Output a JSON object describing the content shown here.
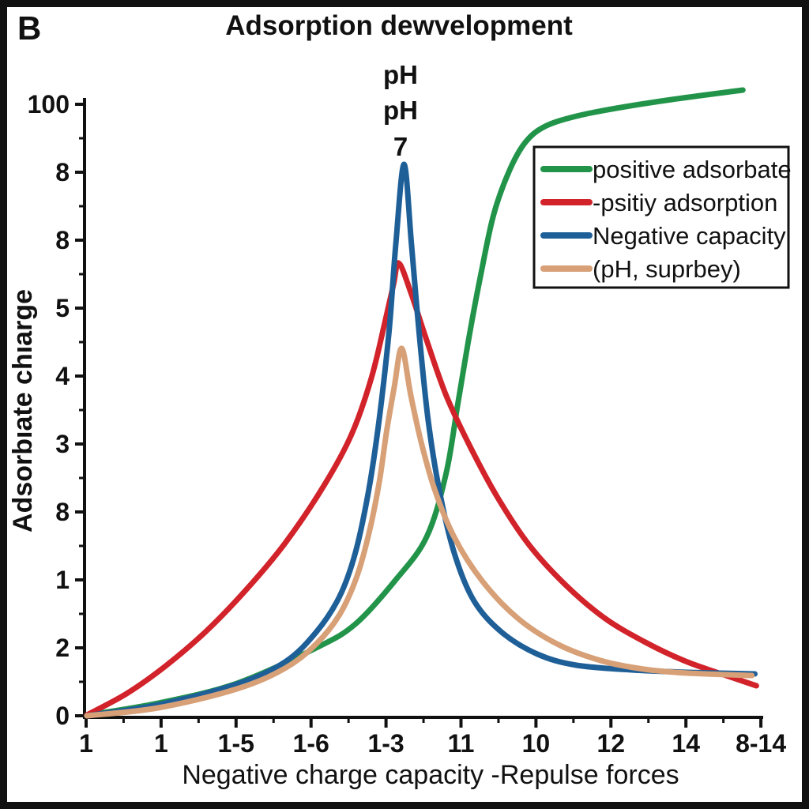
{
  "panel_label": "B",
  "title": "Adsorption dewvelopment",
  "annotation": {
    "lines": [
      "pH",
      "pH",
      "7"
    ]
  },
  "axes": {
    "x_label": "Negative charge capacity -Repulse forces",
    "y_label": "Adsorbıate chıarge",
    "x_tick_labels": [
      "1",
      "1",
      "1-5",
      "1-6",
      "1-3",
      "11",
      "10",
      "12",
      "14",
      "8-14"
    ],
    "y_tick_labels": [
      "100",
      "8",
      "8",
      "5",
      "4",
      "3",
      "8",
      "1",
      "2",
      "0"
    ]
  },
  "legend": {
    "items": [
      {
        "label": "positive adsorbate",
        "color": "#22944a"
      },
      {
        "label": "-psitiy adsorption",
        "color": "#d2232b"
      },
      {
        "label": "Negative capacity",
        "color": "#1e5f98"
      },
      {
        "label": "(pH,  suprbey)",
        "color": "#d7a077"
      }
    ]
  },
  "colors": {
    "frame": "#111111",
    "axis": "#111111",
    "background": "#ffffff"
  },
  "chart_data": {
    "type": "line",
    "title": "Adsorption dewvelopment",
    "xlabel": "Negative charge capacity -Repulse forces",
    "ylabel": "Adsorbıate chıarge",
    "x_tick_labels": [
      "1",
      "1",
      "1-5",
      "1-6",
      "1-3",
      "11",
      "10",
      "12",
      "14",
      "8-14"
    ],
    "y_tick_labels": [
      "100",
      "8",
      "8",
      "5",
      "4",
      "3",
      "8",
      "1",
      "2",
      "0"
    ],
    "x_range": [
      0,
      9.0
    ],
    "y_range": [
      0,
      103
    ],
    "grid": false,
    "legend_position": "upper right",
    "series": [
      {
        "name": "positive adsorbate",
        "color": "#22944a",
        "shape": "sigmoid",
        "points": [
          [
            0.01,
            0.1
          ],
          [
            0.96,
            2.07
          ],
          [
            2.01,
            5.3
          ],
          [
            3.07,
            11.11
          ],
          [
            3.59,
            14.99
          ],
          [
            4.12,
            22.09
          ],
          [
            4.54,
            29.2
          ],
          [
            4.8,
            39.53
          ],
          [
            4.96,
            51.16
          ],
          [
            5.12,
            62.79
          ],
          [
            5.28,
            73.13
          ],
          [
            5.44,
            82.17
          ],
          [
            5.65,
            89.28
          ],
          [
            5.86,
            93.8
          ],
          [
            6.12,
            96.38
          ],
          [
            6.54,
            98.06
          ],
          [
            7.07,
            99.35
          ],
          [
            7.81,
            100.78
          ],
          [
            8.76,
            102.33
          ]
        ]
      },
      {
        "name": "-psitiy adsorption",
        "color": "#d2232b",
        "shape": "broad peak at pH 7",
        "points": [
          [
            0.01,
            0.13
          ],
          [
            0.54,
            3.62
          ],
          [
            1.06,
            8.14
          ],
          [
            1.59,
            13.7
          ],
          [
            2.12,
            20.41
          ],
          [
            2.65,
            28.17
          ],
          [
            3.17,
            37.6
          ],
          [
            3.54,
            46.0
          ],
          [
            3.8,
            55.04
          ],
          [
            3.98,
            64.08
          ],
          [
            4.1,
            70.54
          ],
          [
            4.17,
            74.03
          ],
          [
            4.33,
            69.25
          ],
          [
            4.54,
            61.5
          ],
          [
            4.8,
            52.45
          ],
          [
            5.12,
            44.06
          ],
          [
            5.49,
            35.66
          ],
          [
            5.91,
            27.91
          ],
          [
            6.39,
            21.45
          ],
          [
            6.91,
            16.02
          ],
          [
            7.44,
            12.14
          ],
          [
            7.97,
            9.04
          ],
          [
            8.44,
            6.98
          ],
          [
            8.94,
            4.91
          ]
        ]
      },
      {
        "name": "Negative capacity",
        "color": "#1e5f98",
        "shape": "tall narrow peak at pH 7",
        "points": [
          [
            0.01,
            0.0
          ],
          [
            0.96,
            1.81
          ],
          [
            2.01,
            5.17
          ],
          [
            2.65,
            8.79
          ],
          [
            3.07,
            13.7
          ],
          [
            3.38,
            19.51
          ],
          [
            3.59,
            26.62
          ],
          [
            3.77,
            36.95
          ],
          [
            3.91,
            48.58
          ],
          [
            4.04,
            62.79
          ],
          [
            4.13,
            77.0
          ],
          [
            4.24,
            90.18
          ],
          [
            4.34,
            77.0
          ],
          [
            4.44,
            62.79
          ],
          [
            4.56,
            48.58
          ],
          [
            4.71,
            36.95
          ],
          [
            4.91,
            26.62
          ],
          [
            5.17,
            18.86
          ],
          [
            5.54,
            13.7
          ],
          [
            6.02,
            10.08
          ],
          [
            6.54,
            8.27
          ],
          [
            7.28,
            7.49
          ],
          [
            8.02,
            7.11
          ],
          [
            8.92,
            6.85
          ]
        ]
      },
      {
        "name": "(pH,  suprbey)",
        "color": "#d7a077",
        "shape": "narrow peak at pH 7",
        "points": [
          [
            0.01,
            0.0
          ],
          [
            0.96,
            1.29
          ],
          [
            2.01,
            4.39
          ],
          [
            2.65,
            7.75
          ],
          [
            3.07,
            11.76
          ],
          [
            3.38,
            16.54
          ],
          [
            3.61,
            22.74
          ],
          [
            3.78,
            30.23
          ],
          [
            3.91,
            38.24
          ],
          [
            4.01,
            46.64
          ],
          [
            4.11,
            53.75
          ],
          [
            4.21,
            60.08
          ],
          [
            4.33,
            52.45
          ],
          [
            4.47,
            44.7
          ],
          [
            4.65,
            36.95
          ],
          [
            4.91,
            29.2
          ],
          [
            5.28,
            22.09
          ],
          [
            5.75,
            16.02
          ],
          [
            6.28,
            11.76
          ],
          [
            6.86,
            9.04
          ],
          [
            7.44,
            7.62
          ],
          [
            8.02,
            6.98
          ],
          [
            8.88,
            6.59
          ]
        ]
      }
    ]
  }
}
